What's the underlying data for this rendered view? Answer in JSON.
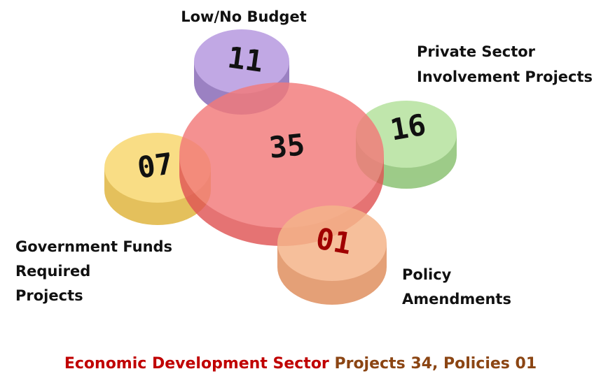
{
  "diagram": {
    "center": {
      "value": "35"
    },
    "nodes": [
      {
        "label_lines": [
          "Low/No Budget"
        ],
        "value": "11"
      },
      {
        "label_lines": [
          "Private Sector",
          "Involvement Projects"
        ],
        "value": "16"
      },
      {
        "label_lines": [
          "Government Funds",
          "Required",
          "Projects"
        ],
        "value": "07"
      },
      {
        "label_lines": [
          "Policy",
          "Amendments"
        ],
        "value": "01"
      }
    ],
    "footer": {
      "sector": "Economic Development Sector",
      "summary": "Projects 34, Policies 01"
    }
  }
}
